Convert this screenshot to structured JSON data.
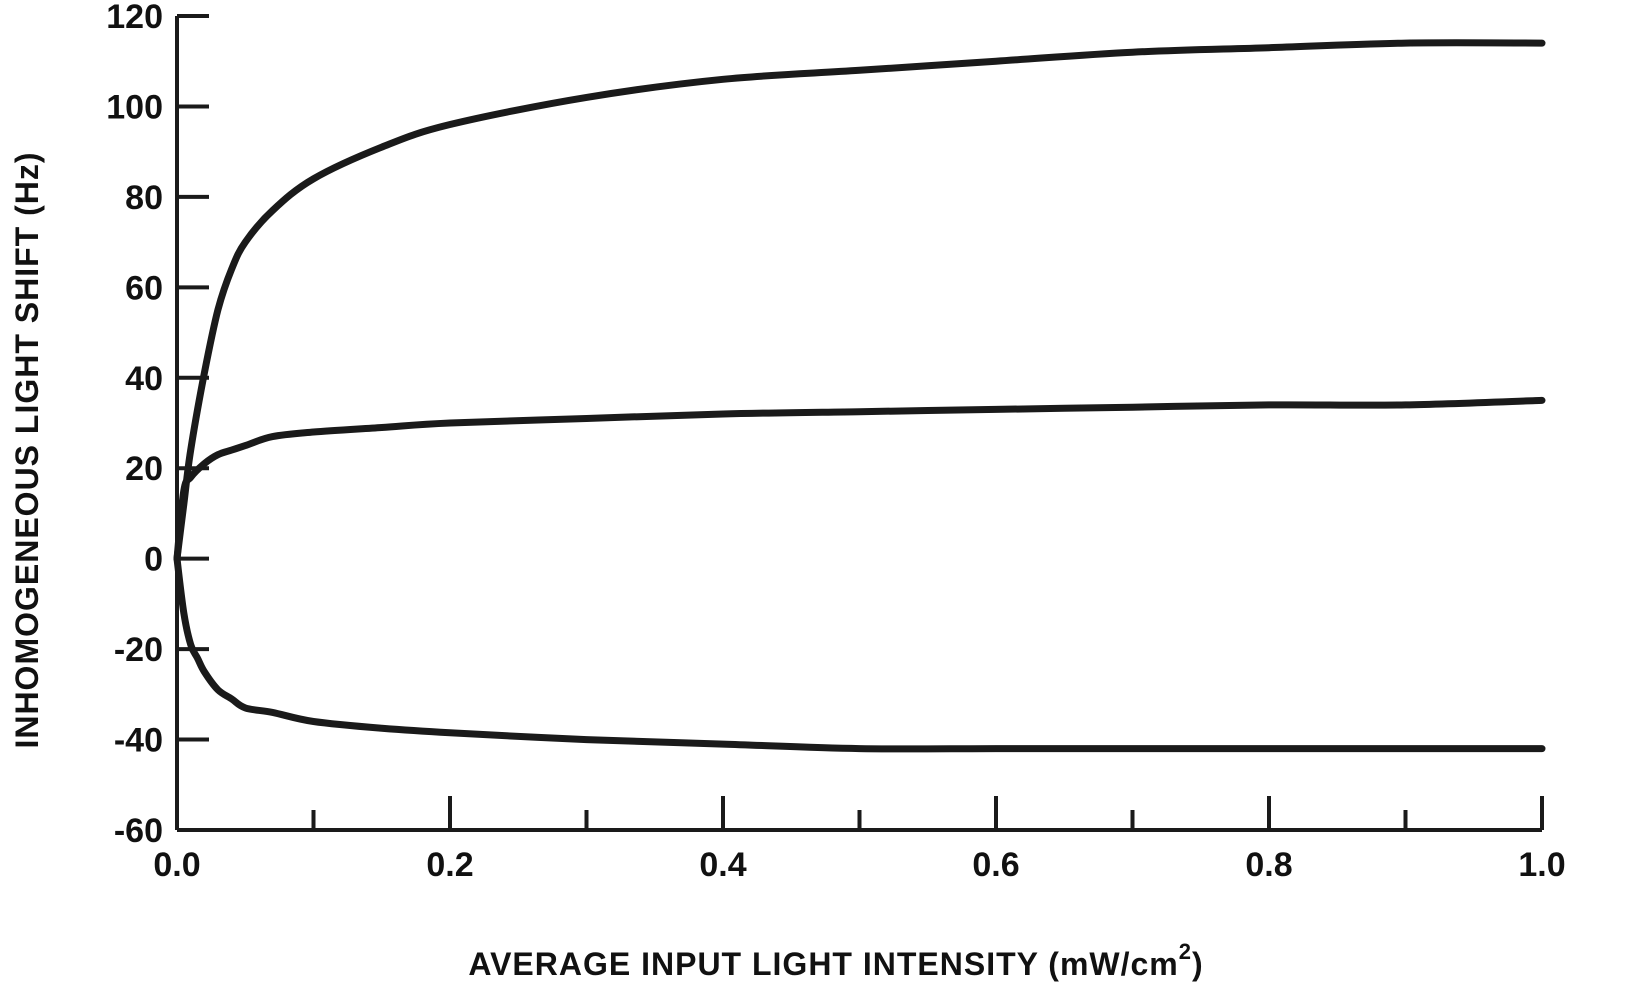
{
  "chart_data": {
    "type": "line",
    "title": "",
    "xlabel": "AVERAGE INPUT LIGHT INTENSITY (mW/cm",
    "xlabel_sup": "2",
    "xlabel_close": ")",
    "ylabel": "INHOMOGENEOUS LIGHT SHIFT (Hz)",
    "xlim": [
      0.0,
      1.0
    ],
    "ylim": [
      -60,
      120
    ],
    "x_ticks": [
      0.0,
      0.2,
      0.4,
      0.6,
      0.8,
      1.0
    ],
    "x_tick_labels": [
      "0.0",
      "0.2",
      "0.4",
      "0.6",
      "0.8",
      "1.0"
    ],
    "x_minor_ticks": [
      0.1,
      0.3,
      0.5,
      0.7,
      0.9
    ],
    "y_ticks": [
      -60,
      -40,
      -20,
      0,
      20,
      40,
      60,
      80,
      100,
      120
    ],
    "y_tick_labels": [
      "-60",
      "-40",
      "-20",
      "0",
      "20",
      "40",
      "60",
      "80",
      "100",
      "120"
    ],
    "grid": false,
    "legend": "none",
    "series": [
      {
        "x": [
          0.0,
          0.005,
          0.01,
          0.02,
          0.03,
          0.04,
          0.05,
          0.07,
          0.1,
          0.15,
          0.2,
          0.3,
          0.4,
          0.5,
          0.6,
          0.7,
          0.8,
          0.9,
          1.0
        ],
        "y": [
          0,
          12,
          24,
          41,
          55,
          64,
          70,
          77,
          84,
          91,
          96,
          102,
          106,
          108,
          110,
          112,
          113,
          114,
          114
        ]
      },
      {
        "x": [
          0.0,
          0.005,
          0.01,
          0.02,
          0.03,
          0.04,
          0.05,
          0.07,
          0.1,
          0.15,
          0.2,
          0.3,
          0.4,
          0.5,
          0.6,
          0.7,
          0.8,
          0.9,
          1.0
        ],
        "y": [
          0,
          15,
          18,
          21,
          23,
          24,
          25,
          27,
          28,
          29,
          30,
          31,
          32,
          32.5,
          33,
          33.5,
          34,
          34,
          35
        ]
      },
      {
        "x": [
          0.0,
          0.005,
          0.01,
          0.015,
          0.02,
          0.03,
          0.04,
          0.05,
          0.07,
          0.1,
          0.15,
          0.2,
          0.3,
          0.4,
          0.5,
          0.6,
          0.7,
          0.8,
          0.9,
          1.0
        ],
        "y": [
          0,
          -12,
          -19,
          -22,
          -25,
          -29,
          -31,
          -33,
          -34,
          -36,
          -37.5,
          -38.5,
          -40,
          -41,
          -42,
          -42,
          -42,
          -42,
          -42,
          -42
        ]
      }
    ]
  }
}
